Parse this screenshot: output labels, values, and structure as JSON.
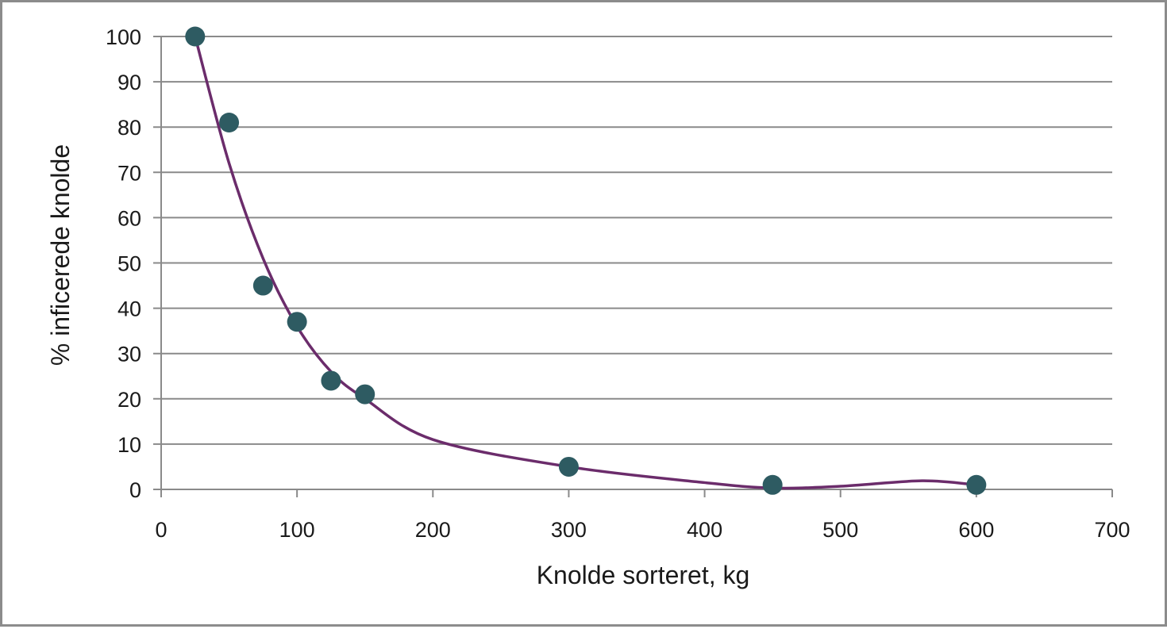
{
  "chart_data": {
    "type": "scatter",
    "title": "",
    "xlabel": "Knolde sorteret, kg",
    "ylabel": "% inficerede knolde",
    "xlim": [
      0,
      700
    ],
    "ylim": [
      0,
      100
    ],
    "x_ticks": [
      "0",
      "100",
      "200",
      "300",
      "400",
      "500",
      "600",
      "700"
    ],
    "y_ticks": [
      "0",
      "10",
      "20",
      "30",
      "40",
      "50",
      "60",
      "70",
      "80",
      "90",
      "100"
    ],
    "grid": "horizontal",
    "legend": "none",
    "series": [
      {
        "points": [
          {
            "x": 25,
            "y": 100
          },
          {
            "x": 50,
            "y": 81
          },
          {
            "x": 75,
            "y": 45
          },
          {
            "x": 100,
            "y": 37
          },
          {
            "x": 125,
            "y": 24
          },
          {
            "x": 150,
            "y": 21
          },
          {
            "x": 300,
            "y": 5
          },
          {
            "x": 450,
            "y": 1
          },
          {
            "x": 600,
            "y": 1
          }
        ],
        "marker_color": "#2e5b62"
      }
    ],
    "trendline": {
      "type": "smooth",
      "color": "#6b2c6b",
      "points": [
        {
          "x": 25,
          "y": 100
        },
        {
          "x": 50,
          "y": 72
        },
        {
          "x": 75,
          "y": 51
        },
        {
          "x": 100,
          "y": 36
        },
        {
          "x": 125,
          "y": 26
        },
        {
          "x": 150,
          "y": 20
        },
        {
          "x": 200,
          "y": 11
        },
        {
          "x": 300,
          "y": 5
        },
        {
          "x": 400,
          "y": 1.5
        },
        {
          "x": 450,
          "y": 0.3
        },
        {
          "x": 500,
          "y": 0.7
        },
        {
          "x": 560,
          "y": 1.9
        },
        {
          "x": 600,
          "y": 1
        }
      ]
    }
  }
}
